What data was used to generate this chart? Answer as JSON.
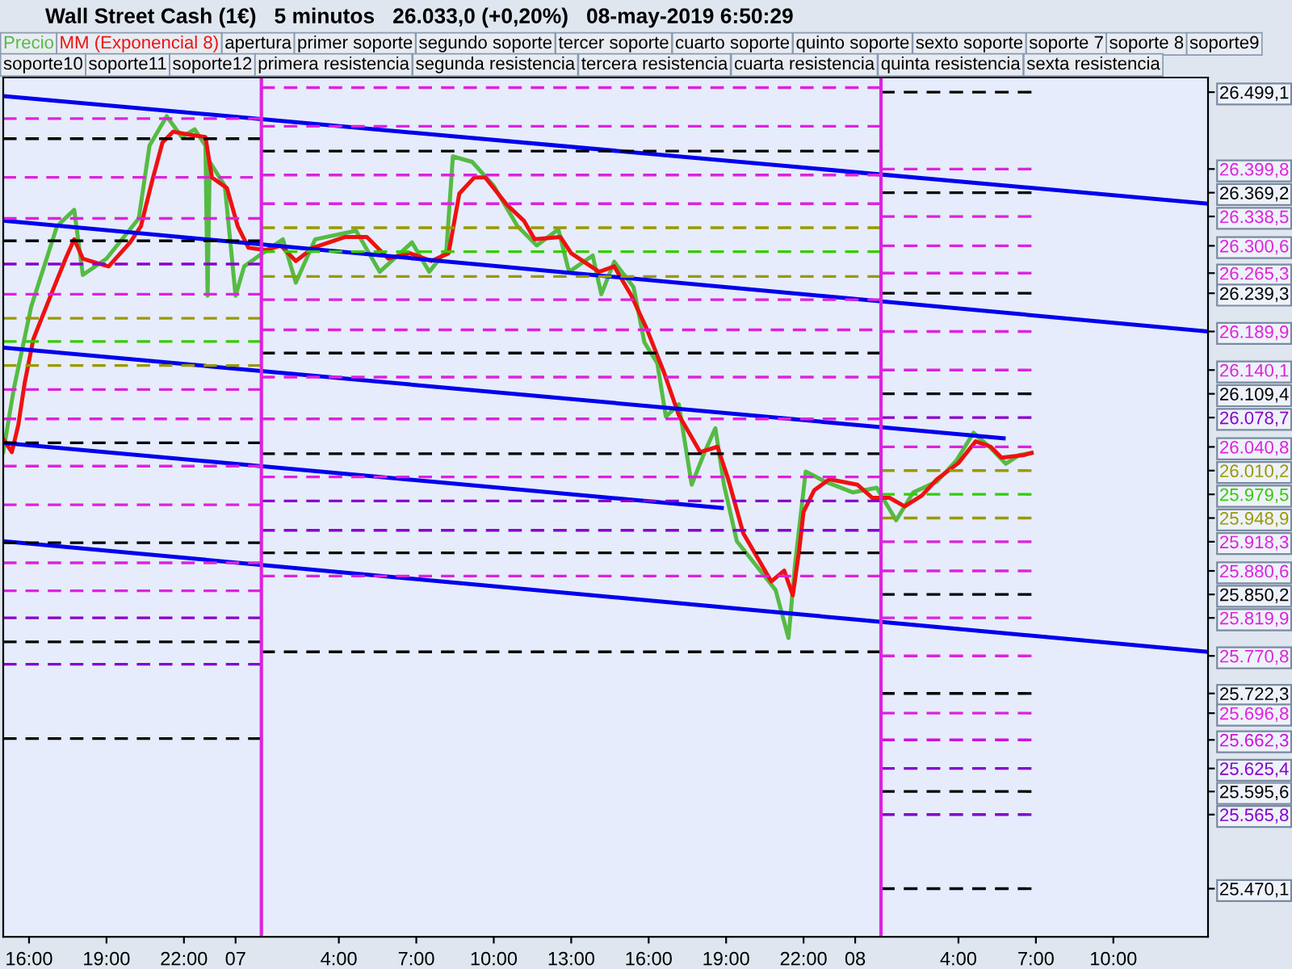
{
  "chart_data": {
    "type": "line",
    "title": "Wall Street Cash (1€)   5 minutos   26.033,0 (+0,20%)   08-may-2019 6:50:29",
    "legend": "top",
    "annotations": [
      "apertura",
      "primer soporte",
      "segundo soporte",
      "tercer soporte",
      "cuarto soporte",
      "quinto soporte",
      "sexto soporte",
      "soporte 7",
      "soporte 8",
      "soporte9",
      "soporte10",
      "soporte11",
      "soporte12",
      "primera resistencia",
      "segunda resistencia",
      "tercera resistencia",
      "cuarta resistencia",
      "quinta resistencia",
      "sexta resistencia"
    ],
    "xlim": [
      "2019-05-06T15:00",
      "2019-05-08T13:40"
    ],
    "xticks": [
      {
        "value": "2019-05-06T16:00",
        "label": "16:00"
      },
      {
        "value": "2019-05-06T19:00",
        "label": "19:00"
      },
      {
        "value": "2019-05-06T22:00",
        "label": "22:00"
      },
      {
        "value": "2019-05-07T00:00",
        "label": "07"
      },
      {
        "value": "2019-05-07T04:00",
        "label": "4:00"
      },
      {
        "value": "2019-05-07T07:00",
        "label": "7:00"
      },
      {
        "value": "2019-05-07T10:00",
        "label": "10:00"
      },
      {
        "value": "2019-05-07T13:00",
        "label": "13:00"
      },
      {
        "value": "2019-05-07T16:00",
        "label": "16:00"
      },
      {
        "value": "2019-05-07T19:00",
        "label": "19:00"
      },
      {
        "value": "2019-05-07T22:00",
        "label": "22:00"
      },
      {
        "value": "2019-05-08T00:00",
        "label": "08"
      },
      {
        "value": "2019-05-08T04:00",
        "label": "4:00"
      },
      {
        "value": "2019-05-08T07:00",
        "label": "7:00"
      },
      {
        "value": "2019-05-08T10:00",
        "label": "10:00"
      }
    ],
    "ylim": [
      25408,
      26518
    ],
    "yticks": [
      {
        "value": 26499.1,
        "label": "26.499,1"
      },
      {
        "value": 26399.8,
        "label": "26.399,8"
      },
      {
        "value": 26369.2,
        "label": "26.369,2"
      },
      {
        "value": 26338.5,
        "label": "26.338,5"
      },
      {
        "value": 26300.6,
        "label": "26.300,6"
      },
      {
        "value": 26265.3,
        "label": "26.265,3"
      },
      {
        "value": 26239.3,
        "label": "26.239,3"
      },
      {
        "value": 26189.9,
        "label": "26.189,9"
      },
      {
        "value": 26140.1,
        "label": "26.140,1"
      },
      {
        "value": 26109.4,
        "label": "26.109,4"
      },
      {
        "value": 26078.7,
        "label": "26.078,7"
      },
      {
        "value": 26040.8,
        "label": "26.040,8"
      },
      {
        "value": 26010.2,
        "label": "26.010,2"
      },
      {
        "value": 25979.5,
        "label": "25.979,5"
      },
      {
        "value": 25948.9,
        "label": "25.948,9"
      },
      {
        "value": 25918.3,
        "label": "25.918,3"
      },
      {
        "value": 25880.6,
        "label": "25.880,6"
      },
      {
        "value": 25850.2,
        "label": "25.850,2"
      },
      {
        "value": 25819.9,
        "label": "25.819,9"
      },
      {
        "value": 25770.8,
        "label": "25.770,8"
      },
      {
        "value": 25722.3,
        "label": "25.722,3"
      },
      {
        "value": 25696.8,
        "label": "25.696,8"
      },
      {
        "value": 25662.3,
        "label": "25.662,3"
      },
      {
        "value": 25625.4,
        "label": "25.625,4"
      },
      {
        "value": 25595.6,
        "label": "25.595,6"
      },
      {
        "value": 25565.8,
        "label": "25.565,8"
      },
      {
        "value": 25470.1,
        "label": "25.470,1"
      }
    ],
    "ref_lines": [
      {
        "axis": "x",
        "value": "2019-05-07T01:00",
        "color": "#dd22dd",
        "line_style": "solid"
      },
      {
        "axis": "x",
        "value": "2019-05-08T01:00",
        "color": "#dd22dd",
        "line_style": "solid"
      }
    ],
    "series": [
      {
        "name": "Precio",
        "color": "#55bb44",
        "x": [
          "2019-05-06T15:00",
          "2019-05-06T15:25",
          "2019-05-06T16:05",
          "2019-05-06T17:05",
          "2019-05-06T17:45",
          "2019-05-06T18:05",
          "2019-05-06T19:00",
          "2019-05-06T20:15",
          "2019-05-06T20:40",
          "2019-05-06T21:20",
          "2019-05-06T21:55",
          "2019-05-06T22:25",
          "2019-05-06T22:50",
          "2019-05-06T22:55",
          "2019-05-06T23:00",
          "2019-05-06T23:35",
          "2019-05-07T00:00",
          "2019-05-07T00:20",
          "2019-05-07T00:55",
          "2019-05-07T01:50",
          "2019-05-07T02:20",
          "2019-05-07T03:05",
          "2019-05-07T04:40",
          "2019-05-07T05:35",
          "2019-05-07T06:50",
          "2019-05-07T07:30",
          "2019-05-07T08:10",
          "2019-05-07T08:25",
          "2019-05-07T09:10",
          "2019-05-07T10:00",
          "2019-05-07T10:55",
          "2019-05-07T11:40",
          "2019-05-07T12:30",
          "2019-05-07T12:55",
          "2019-05-07T13:50",
          "2019-05-07T14:10",
          "2019-05-07T14:40",
          "2019-05-07T15:25",
          "2019-05-07T15:50",
          "2019-05-07T16:20",
          "2019-05-07T16:40",
          "2019-05-07T17:10",
          "2019-05-07T17:40",
          "2019-05-07T18:10",
          "2019-05-07T18:35",
          "2019-05-07T18:55",
          "2019-05-07T19:25",
          "2019-05-07T20:25",
          "2019-05-07T20:55",
          "2019-05-07T21:25",
          "2019-05-07T21:40",
          "2019-05-07T22:05",
          "2019-05-07T22:50",
          "2019-05-07T23:55",
          "2019-05-08T00:50",
          "2019-05-08T01:35",
          "2019-05-08T02:15",
          "2019-05-08T03:10",
          "2019-05-08T03:55",
          "2019-05-08T04:35",
          "2019-05-08T05:10",
          "2019-05-08T05:50",
          "2019-05-08T06:20",
          "2019-05-08T06:50"
        ],
        "values": [
          26034,
          26117,
          26222,
          26326,
          26347,
          26263,
          26284,
          26336,
          26430,
          26468,
          26441,
          26451,
          26430,
          26236,
          26409,
          26378,
          26236,
          26274,
          26288,
          26309,
          26253,
          26309,
          26320,
          26267,
          26305,
          26267,
          26295,
          26416,
          26409,
          26378,
          26326,
          26301,
          26322,
          26267,
          26288,
          26238,
          26280,
          26247,
          26176,
          26149,
          26080,
          26096,
          25992,
          26034,
          26065,
          25992,
          25919,
          25877,
          25856,
          25794,
          25888,
          26009,
          25996,
          25982,
          25988,
          25946,
          25982,
          25996,
          26023,
          26059,
          26042,
          26019,
          26030,
          26033
        ]
      },
      {
        "name": "MM (Exponencial 8)",
        "color": "#ee1111",
        "x": [
          "2019-05-06T15:00",
          "2019-05-06T15:20",
          "2019-05-06T15:35",
          "2019-05-06T15:50",
          "2019-05-06T16:10",
          "2019-05-06T16:50",
          "2019-05-06T17:25",
          "2019-05-06T17:45",
          "2019-05-06T18:05",
          "2019-05-06T18:40",
          "2019-05-06T19:05",
          "2019-05-06T19:55",
          "2019-05-06T20:20",
          "2019-05-06T20:45",
          "2019-05-06T21:10",
          "2019-05-06T21:35",
          "2019-05-06T22:15",
          "2019-05-06T22:50",
          "2019-05-06T23:05",
          "2019-05-06T23:40",
          "2019-05-07T00:05",
          "2019-05-07T00:30",
          "2019-05-07T01:10",
          "2019-05-07T01:45",
          "2019-05-07T02:20",
          "2019-05-07T03:00",
          "2019-05-07T04:15",
          "2019-05-07T05:05",
          "2019-05-07T05:55",
          "2019-05-07T06:45",
          "2019-05-07T07:35",
          "2019-05-07T08:15",
          "2019-05-07T08:40",
          "2019-05-07T09:15",
          "2019-05-07T09:40",
          "2019-05-07T10:30",
          "2019-05-07T11:10",
          "2019-05-07T11:35",
          "2019-05-07T12:35",
          "2019-05-07T13:00",
          "2019-05-07T14:05",
          "2019-05-07T14:40",
          "2019-05-07T15:20",
          "2019-05-07T15:55",
          "2019-05-07T16:35",
          "2019-05-07T17:10",
          "2019-05-07T18:00",
          "2019-05-07T18:40",
          "2019-05-07T19:05",
          "2019-05-07T19:40",
          "2019-05-07T20:45",
          "2019-05-07T21:15",
          "2019-05-07T21:35",
          "2019-05-07T21:50",
          "2019-05-07T22:00",
          "2019-05-07T22:25",
          "2019-05-07T23:00",
          "2019-05-08T00:05",
          "2019-05-08T00:40",
          "2019-05-08T01:20",
          "2019-05-08T01:55",
          "2019-05-08T02:35",
          "2019-05-08T03:10",
          "2019-05-08T04:00",
          "2019-05-08T04:40",
          "2019-05-08T05:15",
          "2019-05-08T05:40",
          "2019-05-08T06:30",
          "2019-05-08T06:50"
        ],
        "values": [
          26051,
          26034,
          26069,
          26124,
          26180,
          26236,
          26284,
          26309,
          26284,
          26278,
          26274,
          26305,
          26326,
          26382,
          26434,
          26448,
          26444,
          26441,
          26389,
          26375,
          26326,
          26298,
          26295,
          26301,
          26281,
          26298,
          26312,
          26312,
          26284,
          26291,
          26281,
          26291,
          26368,
          26389,
          26389,
          26354,
          26333,
          26309,
          26312,
          26291,
          26267,
          26274,
          26236,
          26194,
          26138,
          26082,
          26034,
          26041,
          25999,
          25929,
          25867,
          25881,
          25849,
          25908,
          25957,
          25985,
          25999,
          25992,
          25975,
          25975,
          25964,
          25978,
          25999,
          26020,
          26048,
          26041,
          26027,
          26030,
          26033
        ]
      },
      {
        "color": "#0000ee",
        "line_style": "solid",
        "x": [
          "2019-05-06T15:00",
          "2019-05-08T13:40"
        ],
        "values": [
          26494,
          26355
        ]
      },
      {
        "color": "#0000ee",
        "line_style": "solid",
        "x": [
          "2019-05-06T15:00",
          "2019-05-08T13:40"
        ],
        "values": [
          26333,
          26190
        ]
      },
      {
        "color": "#0000ee",
        "line_style": "solid",
        "x": [
          "2019-05-06T15:00",
          "2019-05-08T05:45"
        ],
        "values": [
          26169,
          26052
        ]
      },
      {
        "color": "#0000ee",
        "line_style": "solid",
        "x": [
          "2019-05-06T15:00",
          "2019-05-07T18:50"
        ],
        "values": [
          26046,
          25962
        ]
      },
      {
        "color": "#0000ee",
        "line_style": "solid",
        "x": [
          "2019-05-06T15:00",
          "2019-05-08T13:40"
        ],
        "values": [
          25919,
          25776
        ]
      },
      {
        "color": "#dd22dd",
        "line_style": "dashed",
        "x": [
          "2019-05-06T15:00",
          "2019-05-07T01:00"
        ],
        "values": [
          26465,
          26465
        ]
      },
      {
        "color": "#000000",
        "line_style": "dashed",
        "x": [
          "2019-05-06T15:00",
          "2019-05-07T01:00"
        ],
        "values": [
          26439,
          26439
        ]
      },
      {
        "color": "#dd22dd",
        "line_style": "dashed",
        "x": [
          "2019-05-06T15:00",
          "2019-05-07T00:40"
        ],
        "values": [
          26389,
          26389
        ]
      },
      {
        "color": "#dd22dd",
        "line_style": "dashed",
        "x": [
          "2019-05-06T15:00",
          "2019-05-07T01:00"
        ],
        "values": [
          26336,
          26336
        ]
      },
      {
        "color": "#000000",
        "line_style": "dashed",
        "x": [
          "2019-05-06T15:00",
          "2019-05-07T01:00"
        ],
        "values": [
          26307,
          26307
        ]
      },
      {
        "color": "#8800cc",
        "line_style": "dashed",
        "x": [
          "2019-05-06T15:00",
          "2019-05-07T01:00"
        ],
        "values": [
          26277,
          26277
        ]
      },
      {
        "color": "#dd22dd",
        "line_style": "dashed",
        "x": [
          "2019-05-06T15:00",
          "2019-05-07T01:00"
        ],
        "values": [
          26238,
          26238
        ]
      },
      {
        "color": "#999900",
        "line_style": "dashed",
        "x": [
          "2019-05-06T15:00",
          "2019-05-07T01:00"
        ],
        "values": [
          26207,
          26207
        ]
      },
      {
        "color": "#33cc00",
        "line_style": "dashed",
        "x": [
          "2019-05-06T15:00",
          "2019-05-07T01:00"
        ],
        "values": [
          26177,
          26177
        ]
      },
      {
        "color": "#999900",
        "line_style": "dashed",
        "x": [
          "2019-05-06T15:00",
          "2019-05-07T01:00"
        ],
        "values": [
          26146,
          26146
        ]
      },
      {
        "color": "#dd22dd",
        "line_style": "dashed",
        "x": [
          "2019-05-06T15:00",
          "2019-05-07T01:00"
        ],
        "values": [
          26115,
          26115
        ]
      },
      {
        "color": "#dd22dd",
        "line_style": "dashed",
        "x": [
          "2019-05-06T15:00",
          "2019-05-07T00:40"
        ],
        "values": [
          26077,
          26077
        ]
      },
      {
        "color": "#000000",
        "line_style": "dashed",
        "x": [
          "2019-05-06T15:00",
          "2019-05-07T01:00"
        ],
        "values": [
          26046,
          26046
        ]
      },
      {
        "color": "#dd22dd",
        "line_style": "dashed",
        "x": [
          "2019-05-06T15:00",
          "2019-05-07T01:00"
        ],
        "values": [
          26016,
          26016
        ]
      },
      {
        "color": "#dd22dd",
        "line_style": "dashed",
        "x": [
          "2019-05-06T15:00",
          "2019-05-07T01:00"
        ],
        "values": [
          25966,
          25966
        ]
      },
      {
        "color": "#000000",
        "line_style": "dashed",
        "x": [
          "2019-05-06T15:00",
          "2019-05-07T01:00"
        ],
        "values": [
          25917,
          25917
        ]
      },
      {
        "color": "#dd22dd",
        "line_style": "dashed",
        "x": [
          "2019-05-06T15:00",
          "2019-05-07T01:00"
        ],
        "values": [
          25891,
          25891
        ]
      },
      {
        "color": "#dd22dd",
        "line_style": "dashed",
        "x": [
          "2019-05-06T15:00",
          "2019-05-07T01:00"
        ],
        "values": [
          25855,
          25855
        ]
      },
      {
        "color": "#8800cc",
        "line_style": "dashed",
        "x": [
          "2019-05-06T15:00",
          "2019-05-07T01:00"
        ],
        "values": [
          25820,
          25820
        ]
      },
      {
        "color": "#000000",
        "line_style": "dashed",
        "x": [
          "2019-05-06T15:00",
          "2019-05-07T01:00"
        ],
        "values": [
          25789,
          25789
        ]
      },
      {
        "color": "#8800cc",
        "line_style": "dashed",
        "x": [
          "2019-05-06T15:00",
          "2019-05-07T01:00"
        ],
        "values": [
          25760,
          25760
        ]
      },
      {
        "color": "#000000",
        "line_style": "dashed",
        "x": [
          "2019-05-06T15:00",
          "2019-05-07T01:00"
        ],
        "values": [
          25664,
          25664
        ]
      },
      {
        "color": "#dd22dd",
        "line_style": "dashed",
        "x": [
          "2019-05-07T01:00",
          "2019-05-08T01:00"
        ],
        "values": [
          26505,
          26505
        ]
      },
      {
        "color": "#dd22dd",
        "line_style": "dashed",
        "x": [
          "2019-05-07T01:00",
          "2019-05-08T01:00"
        ],
        "values": [
          26455,
          26455
        ]
      },
      {
        "color": "#000000",
        "line_style": "dashed",
        "x": [
          "2019-05-07T01:00",
          "2019-05-08T01:00"
        ],
        "values": [
          26423,
          26423
        ]
      },
      {
        "color": "#dd22dd",
        "line_style": "dashed",
        "x": [
          "2019-05-07T01:00",
          "2019-05-08T01:00"
        ],
        "values": [
          26392,
          26392
        ]
      },
      {
        "color": "#dd22dd",
        "line_style": "dashed",
        "x": [
          "2019-05-07T01:00",
          "2019-05-08T01:00"
        ],
        "values": [
          26355,
          26355
        ]
      },
      {
        "color": "#999900",
        "line_style": "dashed",
        "x": [
          "2019-05-07T01:00",
          "2019-05-08T01:00"
        ],
        "values": [
          26324,
          26324
        ]
      },
      {
        "color": "#33cc00",
        "line_style": "dashed",
        "x": [
          "2019-05-07T01:00",
          "2019-05-08T01:00"
        ],
        "values": [
          26293,
          26293
        ]
      },
      {
        "color": "#999900",
        "line_style": "dashed",
        "x": [
          "2019-05-07T01:00",
          "2019-05-08T01:00"
        ],
        "values": [
          26261,
          26261
        ]
      },
      {
        "color": "#dd22dd",
        "line_style": "dashed",
        "x": [
          "2019-05-07T01:00",
          "2019-05-08T01:00"
        ],
        "values": [
          26231,
          26231
        ]
      },
      {
        "color": "#dd22dd",
        "line_style": "dashed",
        "x": [
          "2019-05-07T01:00",
          "2019-05-08T00:40"
        ],
        "values": [
          26192,
          26192
        ]
      },
      {
        "color": "#000000",
        "line_style": "dashed",
        "x": [
          "2019-05-07T01:00",
          "2019-05-08T01:00"
        ],
        "values": [
          26162,
          26162
        ]
      },
      {
        "color": "#dd22dd",
        "line_style": "dashed",
        "x": [
          "2019-05-07T01:00",
          "2019-05-08T01:00"
        ],
        "values": [
          26131,
          26131
        ]
      },
      {
        "color": "#dd22dd",
        "line_style": "dashed",
        "x": [
          "2019-05-07T01:00",
          "2019-05-08T01:00"
        ],
        "values": [
          26077,
          26077
        ]
      },
      {
        "color": "#000000",
        "line_style": "dashed",
        "x": [
          "2019-05-07T01:00",
          "2019-05-08T01:00"
        ],
        "values": [
          26032,
          26032
        ]
      },
      {
        "color": "#dd22dd",
        "line_style": "dashed",
        "x": [
          "2019-05-07T01:00",
          "2019-05-08T01:00"
        ],
        "values": [
          26002,
          26002
        ]
      },
      {
        "color": "#8800cc",
        "line_style": "dashed",
        "x": [
          "2019-05-07T01:00",
          "2019-05-08T01:00"
        ],
        "values": [
          25971,
          25971
        ]
      },
      {
        "color": "#8800cc",
        "line_style": "dashed",
        "x": [
          "2019-05-07T01:00",
          "2019-05-08T01:00"
        ],
        "values": [
          25933,
          25933
        ]
      },
      {
        "color": "#000000",
        "line_style": "dashed",
        "x": [
          "2019-05-07T01:00",
          "2019-05-08T01:00"
        ],
        "values": [
          25904,
          25904
        ]
      },
      {
        "color": "#dd22dd",
        "line_style": "dashed",
        "x": [
          "2019-05-07T01:00",
          "2019-05-08T01:00"
        ],
        "values": [
          25874,
          25874
        ]
      },
      {
        "color": "#000000",
        "line_style": "dashed",
        "x": [
          "2019-05-07T01:00",
          "2019-05-08T01:00"
        ],
        "values": [
          25776,
          25776
        ]
      },
      {
        "color": "#000000",
        "line_style": "dashed",
        "x": [
          "2019-05-08T01:00",
          "2019-05-08T06:50"
        ],
        "values": [
          26499.1,
          26499.1
        ]
      },
      {
        "color": "#dd22dd",
        "line_style": "dashed",
        "x": [
          "2019-05-08T01:00",
          "2019-05-08T06:50"
        ],
        "values": [
          26399.8,
          26399.8
        ]
      },
      {
        "color": "#000000",
        "line_style": "dashed",
        "x": [
          "2019-05-08T01:00",
          "2019-05-08T06:50"
        ],
        "values": [
          26369.2,
          26369.2
        ]
      },
      {
        "color": "#dd22dd",
        "line_style": "dashed",
        "x": [
          "2019-05-08T01:00",
          "2019-05-08T06:50"
        ],
        "values": [
          26338.5,
          26338.5
        ]
      },
      {
        "color": "#dd22dd",
        "line_style": "dashed",
        "x": [
          "2019-05-08T01:00",
          "2019-05-08T06:50"
        ],
        "values": [
          26300.6,
          26300.6
        ]
      },
      {
        "color": "#dd22dd",
        "line_style": "dashed",
        "x": [
          "2019-05-08T01:00",
          "2019-05-08T06:50"
        ],
        "values": [
          26265.3,
          26265.3
        ]
      },
      {
        "color": "#000000",
        "line_style": "dashed",
        "x": [
          "2019-05-08T01:00",
          "2019-05-08T06:50"
        ],
        "values": [
          26239.3,
          26239.3
        ]
      },
      {
        "color": "#dd22dd",
        "line_style": "dashed",
        "x": [
          "2019-05-08T01:00",
          "2019-05-08T06:50"
        ],
        "values": [
          26189.9,
          26189.9
        ]
      },
      {
        "color": "#dd22dd",
        "line_style": "dashed",
        "x": [
          "2019-05-08T01:00",
          "2019-05-08T06:50"
        ],
        "values": [
          26140.1,
          26140.1
        ]
      },
      {
        "color": "#000000",
        "line_style": "dashed",
        "x": [
          "2019-05-08T01:00",
          "2019-05-08T06:50"
        ],
        "values": [
          26109.4,
          26109.4
        ]
      },
      {
        "color": "#8800cc",
        "line_style": "dashed",
        "x": [
          "2019-05-08T01:00",
          "2019-05-08T06:50"
        ],
        "values": [
          26078.7,
          26078.7
        ]
      },
      {
        "color": "#dd22dd",
        "line_style": "dashed",
        "x": [
          "2019-05-08T01:00",
          "2019-05-08T06:50"
        ],
        "values": [
          26040.8,
          26040.8
        ]
      },
      {
        "color": "#999900",
        "line_style": "dashed",
        "x": [
          "2019-05-08T01:00",
          "2019-05-08T06:50"
        ],
        "values": [
          26010.2,
          26010.2
        ]
      },
      {
        "color": "#33cc00",
        "line_style": "dashed",
        "x": [
          "2019-05-08T01:00",
          "2019-05-08T06:50"
        ],
        "values": [
          25979.5,
          25979.5
        ]
      },
      {
        "color": "#999900",
        "line_style": "dashed",
        "x": [
          "2019-05-08T01:00",
          "2019-05-08T06:50"
        ],
        "values": [
          25948.9,
          25948.9
        ]
      },
      {
        "color": "#dd22dd",
        "line_style": "dashed",
        "x": [
          "2019-05-08T01:00",
          "2019-05-08T06:50"
        ],
        "values": [
          25918.3,
          25918.3
        ]
      },
      {
        "color": "#dd22dd",
        "line_style": "dashed",
        "x": [
          "2019-05-08T01:00",
          "2019-05-08T06:50"
        ],
        "values": [
          25880.6,
          25880.6
        ]
      },
      {
        "color": "#000000",
        "line_style": "dashed",
        "x": [
          "2019-05-08T01:00",
          "2019-05-08T06:50"
        ],
        "values": [
          25850.2,
          25850.2
        ]
      },
      {
        "color": "#dd22dd",
        "line_style": "dashed",
        "x": [
          "2019-05-08T01:00",
          "2019-05-08T06:50"
        ],
        "values": [
          25819.9,
          25819.9
        ]
      },
      {
        "color": "#dd22dd",
        "line_style": "dashed",
        "x": [
          "2019-05-08T01:00",
          "2019-05-08T06:50"
        ],
        "values": [
          25770.8,
          25770.8
        ]
      },
      {
        "color": "#000000",
        "line_style": "dashed",
        "x": [
          "2019-05-08T01:00",
          "2019-05-08T06:50"
        ],
        "values": [
          25722.3,
          25722.3
        ]
      },
      {
        "color": "#dd22dd",
        "line_style": "dashed",
        "x": [
          "2019-05-08T01:00",
          "2019-05-08T06:50"
        ],
        "values": [
          25696.8,
          25696.8
        ]
      },
      {
        "color": "#cc11dd",
        "line_style": "dashed",
        "x": [
          "2019-05-08T01:00",
          "2019-05-08T06:50"
        ],
        "values": [
          25662.3,
          25662.3
        ]
      },
      {
        "color": "#8800cc",
        "line_style": "dashed",
        "x": [
          "2019-05-08T01:00",
          "2019-05-08T06:50"
        ],
        "values": [
          25625.4,
          25625.4
        ]
      },
      {
        "color": "#000000",
        "line_style": "dashed",
        "x": [
          "2019-05-08T01:00",
          "2019-05-08T06:50"
        ],
        "values": [
          25595.6,
          25595.6
        ]
      },
      {
        "color": "#8800cc",
        "line_style": "dashed",
        "x": [
          "2019-05-08T01:00",
          "2019-05-08T06:50"
        ],
        "values": [
          25565.8,
          25565.8
        ]
      },
      {
        "color": "#000000",
        "line_style": "dashed",
        "x": [
          "2019-05-08T01:00",
          "2019-05-08T06:50"
        ],
        "values": [
          25470.1,
          25470.1
        ]
      }
    ]
  }
}
